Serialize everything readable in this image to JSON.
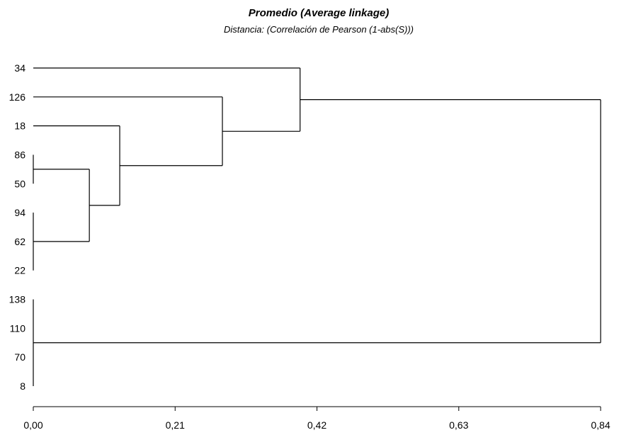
{
  "chart_data": {
    "type": "dendrogram",
    "title": "Promedio (Average linkage)",
    "subtitle": "Distancia: (Correlación de Pearson (1-abs(S)))",
    "xlabel": "",
    "ylabel": "",
    "xlim": [
      0,
      0.84
    ],
    "x_ticks": [
      0,
      0.21,
      0.42,
      0.63,
      0.84
    ],
    "x_tick_labels": [
      "0,00",
      "0,21",
      "0,42",
      "0,63",
      "0,84"
    ],
    "leaves": [
      "34",
      "126",
      "18",
      "86",
      "50",
      "94",
      "62",
      "22",
      "138",
      "110",
      "70",
      "8"
    ],
    "merges": [
      {
        "id": "m1",
        "children": [
          "86",
          "50"
        ],
        "height": 0.0
      },
      {
        "id": "m2",
        "children": [
          "94",
          "62",
          "22"
        ],
        "height": 0.0
      },
      {
        "id": "m3",
        "children": [
          "138",
          "110",
          "70",
          "8"
        ],
        "height": 0.0
      },
      {
        "id": "m4",
        "children": [
          "m1",
          "m2"
        ],
        "height": 0.083
      },
      {
        "id": "m5",
        "children": [
          "18",
          "m4"
        ],
        "height": 0.128
      },
      {
        "id": "m6",
        "children": [
          "126",
          "m5"
        ],
        "height": 0.28
      },
      {
        "id": "m7",
        "children": [
          "34",
          "m6"
        ],
        "height": 0.395
      },
      {
        "id": "m8",
        "children": [
          "m7",
          "m3"
        ],
        "height": 0.84
      }
    ]
  }
}
